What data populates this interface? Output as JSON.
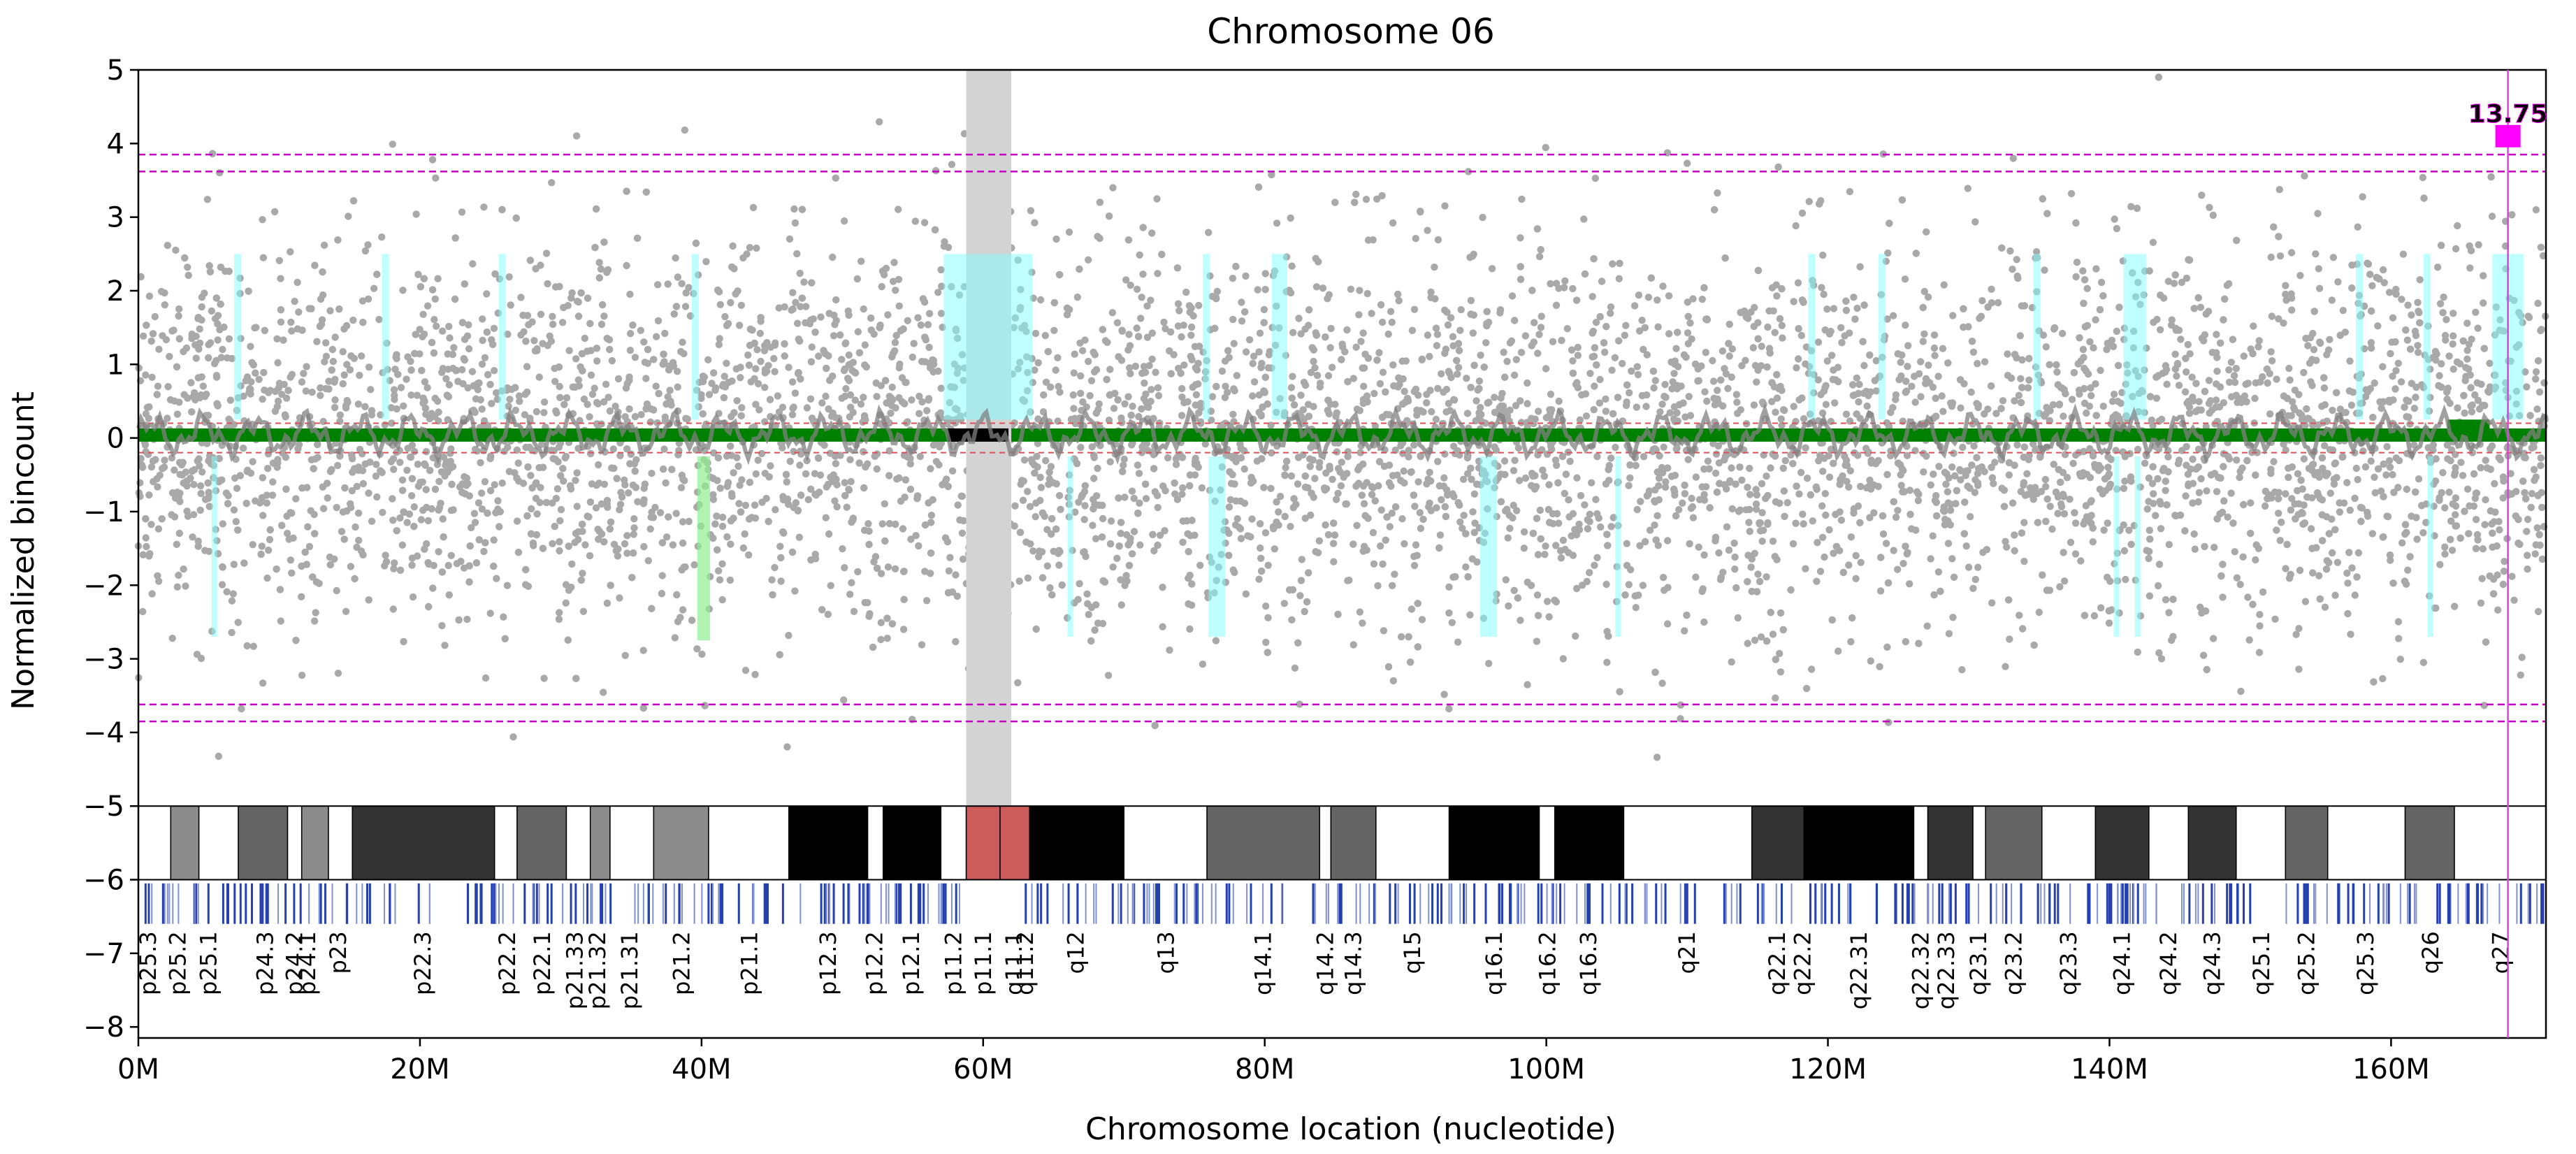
{
  "chart_data": {
    "type": "scatter",
    "title": "Chromosome  06",
    "xlabel": "Chromosome location (nucleotide)",
    "ylabel": "Normalized bincount",
    "xlim": [
      0,
      171
    ],
    "ylim": [
      -8.15,
      5
    ],
    "yticks": [
      5,
      4,
      3,
      2,
      1,
      0,
      -1,
      -2,
      -3,
      -4,
      -5,
      -6,
      -7,
      -8
    ],
    "ytick_labels": [
      "5",
      "4",
      "3",
      "2",
      "1",
      "0",
      "−1",
      "−2",
      "−3",
      "−4",
      "−5",
      "−6",
      "−7",
      "−8"
    ],
    "xticks": [
      0,
      20,
      40,
      60,
      80,
      100,
      120,
      140,
      160
    ],
    "xtick_labels": [
      "0M",
      "20M",
      "40M",
      "60M",
      "80M",
      "100M",
      "120M",
      "140M",
      "160M"
    ],
    "threshold_lines": [
      3.85,
      3.62,
      -3.62,
      -3.85
    ],
    "inner_threshold_lines": [
      0.2,
      -0.2
    ],
    "centromere_region": [
      58.8,
      62
    ],
    "marker": {
      "x": 168.3,
      "y": 4.1,
      "label": "13.75"
    },
    "point_cloud": {
      "count": 7000,
      "spread_sd": 1.3,
      "x_range": [
        0,
        171
      ]
    },
    "trend_line": {
      "color": "#008000",
      "y": 0.05
    },
    "cyan_regions": [
      {
        "start": 6.8,
        "end": 7.3,
        "low": 0.25,
        "high": 2.5
      },
      {
        "start": 17.3,
        "end": 17.8,
        "low": 0.25,
        "high": 2.5
      },
      {
        "start": 25.6,
        "end": 26.1,
        "low": 0.25,
        "high": 2.5
      },
      {
        "start": 39.3,
        "end": 39.8,
        "low": 0.25,
        "high": 2.5
      },
      {
        "start": 57.2,
        "end": 63.5,
        "low": 0.25,
        "high": 2.5
      },
      {
        "start": 75.6,
        "end": 76.1,
        "low": 0.25,
        "high": 2.5
      },
      {
        "start": 80.5,
        "end": 81.6,
        "low": 0.25,
        "high": 2.5
      },
      {
        "start": 118.6,
        "end": 119.1,
        "low": 0.25,
        "high": 2.5
      },
      {
        "start": 123.6,
        "end": 124.1,
        "low": 0.25,
        "high": 2.5
      },
      {
        "start": 134.6,
        "end": 135.1,
        "low": 0.25,
        "high": 2.5
      },
      {
        "start": 141.0,
        "end": 142.6,
        "low": 0.25,
        "high": 2.5
      },
      {
        "start": 157.5,
        "end": 158.0,
        "low": 0.25,
        "high": 2.5
      },
      {
        "start": 162.3,
        "end": 162.8,
        "low": 0.25,
        "high": 2.5
      },
      {
        "start": 167.2,
        "end": 169.4,
        "low": 0.25,
        "high": 2.5
      },
      {
        "start": 5.2,
        "end": 5.6,
        "low": -2.7,
        "high": -0.25
      },
      {
        "start": 66.0,
        "end": 66.4,
        "low": -2.7,
        "high": -0.25
      },
      {
        "start": 76.0,
        "end": 77.2,
        "low": -2.7,
        "high": -0.25
      },
      {
        "start": 95.3,
        "end": 96.5,
        "low": -2.7,
        "high": -0.25
      },
      {
        "start": 104.9,
        "end": 105.3,
        "low": -2.7,
        "high": -0.25
      },
      {
        "start": 140.3,
        "end": 140.7,
        "low": -2.7,
        "high": -0.25
      },
      {
        "start": 141.8,
        "end": 142.2,
        "low": -2.7,
        "high": -0.25
      },
      {
        "start": 162.6,
        "end": 163.0,
        "low": -2.7,
        "high": -0.25
      }
    ],
    "green_regions": [
      {
        "start": 39.7,
        "end": 40.6,
        "low": -2.75,
        "high": -0.25
      }
    ],
    "ideogram": [
      {
        "start": 0,
        "end": 2.3,
        "color": "#ffffff"
      },
      {
        "start": 2.3,
        "end": 4.3,
        "color": "#8c8c8c"
      },
      {
        "start": 4.3,
        "end": 7.1,
        "color": "#ffffff"
      },
      {
        "start": 7.1,
        "end": 10.6,
        "color": "#646464"
      },
      {
        "start": 10.6,
        "end": 11.6,
        "color": "#ffffff"
      },
      {
        "start": 11.6,
        "end": 13.5,
        "color": "#8c8c8c"
      },
      {
        "start": 13.5,
        "end": 15.2,
        "color": "#ffffff"
      },
      {
        "start": 15.2,
        "end": 25.3,
        "color": "#333333"
      },
      {
        "start": 25.3,
        "end": 26.9,
        "color": "#ffffff"
      },
      {
        "start": 26.9,
        "end": 30.4,
        "color": "#646464"
      },
      {
        "start": 30.4,
        "end": 32.1,
        "color": "#ffffff"
      },
      {
        "start": 32.1,
        "end": 33.5,
        "color": "#8c8c8c"
      },
      {
        "start": 33.5,
        "end": 36.6,
        "color": "#ffffff"
      },
      {
        "start": 36.6,
        "end": 40.5,
        "color": "#8c8c8c"
      },
      {
        "start": 40.5,
        "end": 46.2,
        "color": "#ffffff"
      },
      {
        "start": 46.2,
        "end": 51.8,
        "color": "#000000"
      },
      {
        "start": 51.8,
        "end": 52.9,
        "color": "#ffffff"
      },
      {
        "start": 52.9,
        "end": 57.0,
        "color": "#000000"
      },
      {
        "start": 57.0,
        "end": 58.8,
        "color": "#ffffff"
      },
      {
        "start": 58.8,
        "end": 61.2,
        "color": "#cd5c5c"
      },
      {
        "start": 61.2,
        "end": 63.3,
        "color": "#cd5c5c"
      },
      {
        "start": 63.3,
        "end": 70.0,
        "color": "#000000"
      },
      {
        "start": 70.0,
        "end": 75.9,
        "color": "#ffffff"
      },
      {
        "start": 75.9,
        "end": 83.9,
        "color": "#646464"
      },
      {
        "start": 83.9,
        "end": 84.7,
        "color": "#ffffff"
      },
      {
        "start": 84.7,
        "end": 87.9,
        "color": "#646464"
      },
      {
        "start": 87.9,
        "end": 93.1,
        "color": "#ffffff"
      },
      {
        "start": 93.1,
        "end": 99.5,
        "color": "#000000"
      },
      {
        "start": 99.5,
        "end": 100.6,
        "color": "#ffffff"
      },
      {
        "start": 100.6,
        "end": 105.5,
        "color": "#000000"
      },
      {
        "start": 105.5,
        "end": 114.6,
        "color": "#ffffff"
      },
      {
        "start": 114.6,
        "end": 118.3,
        "color": "#333333"
      },
      {
        "start": 118.3,
        "end": 126.1,
        "color": "#000000"
      },
      {
        "start": 126.1,
        "end": 127.1,
        "color": "#ffffff"
      },
      {
        "start": 127.1,
        "end": 130.3,
        "color": "#333333"
      },
      {
        "start": 130.3,
        "end": 131.2,
        "color": "#ffffff"
      },
      {
        "start": 131.2,
        "end": 135.2,
        "color": "#646464"
      },
      {
        "start": 135.2,
        "end": 139.0,
        "color": "#ffffff"
      },
      {
        "start": 139.0,
        "end": 142.8,
        "color": "#333333"
      },
      {
        "start": 142.8,
        "end": 145.6,
        "color": "#ffffff"
      },
      {
        "start": 145.6,
        "end": 149.0,
        "color": "#333333"
      },
      {
        "start": 149.0,
        "end": 152.5,
        "color": "#ffffff"
      },
      {
        "start": 152.5,
        "end": 155.5,
        "color": "#646464"
      },
      {
        "start": 155.5,
        "end": 161.0,
        "color": "#ffffff"
      },
      {
        "start": 161.0,
        "end": 164.5,
        "color": "#646464"
      },
      {
        "start": 164.5,
        "end": 171.0,
        "color": "#ffffff"
      }
    ],
    "gene_ticks_density": 420,
    "band_labels": [
      {
        "x": 0.7,
        "label": "p25.3"
      },
      {
        "x": 2.8,
        "label": "p25.2"
      },
      {
        "x": 5.0,
        "label": "p25.1"
      },
      {
        "x": 9.0,
        "label": "p24.3"
      },
      {
        "x": 11.1,
        "label": "p24.2"
      },
      {
        "x": 12.0,
        "label": "p24.1"
      },
      {
        "x": 14.2,
        "label": "p23"
      },
      {
        "x": 20.2,
        "label": "p22.3"
      },
      {
        "x": 26.2,
        "label": "p22.2"
      },
      {
        "x": 28.7,
        "label": "p22.1"
      },
      {
        "x": 31.0,
        "label": "p21.33"
      },
      {
        "x": 32.6,
        "label": "p21.32"
      },
      {
        "x": 34.9,
        "label": "p21.31"
      },
      {
        "x": 38.6,
        "label": "p21.2"
      },
      {
        "x": 43.4,
        "label": "p21.1"
      },
      {
        "x": 49.0,
        "label": "p12.3"
      },
      {
        "x": 52.3,
        "label": "p12.2"
      },
      {
        "x": 54.9,
        "label": "p12.1"
      },
      {
        "x": 57.9,
        "label": "p11.2"
      },
      {
        "x": 60.0,
        "label": "p11.1"
      },
      {
        "x": 62.2,
        "label": "q11.1"
      },
      {
        "x": 63.0,
        "label": "q11.2"
      },
      {
        "x": 66.6,
        "label": "q12"
      },
      {
        "x": 73.0,
        "label": "q13"
      },
      {
        "x": 79.9,
        "label": "q14.1"
      },
      {
        "x": 84.3,
        "label": "q14.2"
      },
      {
        "x": 86.3,
        "label": "q14.3"
      },
      {
        "x": 90.5,
        "label": "q15"
      },
      {
        "x": 96.3,
        "label": "q16.1"
      },
      {
        "x": 100.1,
        "label": "q16.2"
      },
      {
        "x": 103.0,
        "label": "q16.3"
      },
      {
        "x": 110.0,
        "label": "q21"
      },
      {
        "x": 116.4,
        "label": "q22.1"
      },
      {
        "x": 118.2,
        "label": "q22.2"
      },
      {
        "x": 122.2,
        "label": "q22.31"
      },
      {
        "x": 126.6,
        "label": "q22.32"
      },
      {
        "x": 128.4,
        "label": "q22.33"
      },
      {
        "x": 130.7,
        "label": "q23.1"
      },
      {
        "x": 133.2,
        "label": "q23.2"
      },
      {
        "x": 137.1,
        "label": "q23.3"
      },
      {
        "x": 140.9,
        "label": "q24.1"
      },
      {
        "x": 144.2,
        "label": "q24.2"
      },
      {
        "x": 147.3,
        "label": "q24.3"
      },
      {
        "x": 150.8,
        "label": "q25.1"
      },
      {
        "x": 154.0,
        "label": "q25.2"
      },
      {
        "x": 158.2,
        "label": "q25.3"
      },
      {
        "x": 162.8,
        "label": "q26"
      },
      {
        "x": 167.8,
        "label": "q27"
      }
    ]
  }
}
